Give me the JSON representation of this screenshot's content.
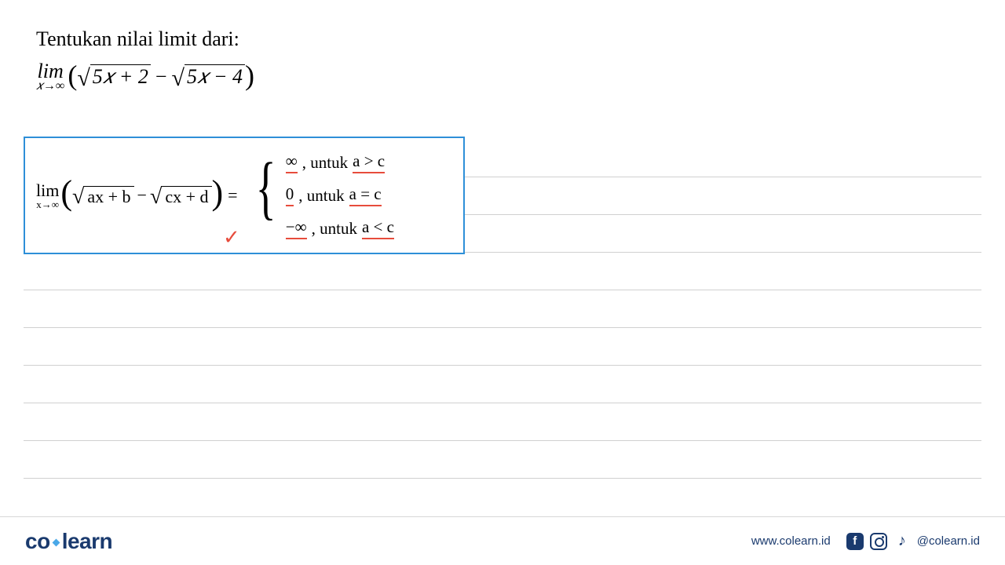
{
  "question": {
    "title": "Tentukan nilai limit dari:",
    "lim_label": "lim",
    "lim_subscript": "𝑥→∞",
    "radicand1": "5𝑥 + 2",
    "minus": "−",
    "radicand2": "5𝑥 − 4"
  },
  "formula": {
    "lim_label": "lim",
    "lim_subscript": "x→∞",
    "radicand_a": "ax + b",
    "minus": "−",
    "radicand_b": "cx + d",
    "equals": "=",
    "cases": [
      {
        "value": "∞",
        "untuk": ", untuk ",
        "cond": "a > c"
      },
      {
        "value": "0",
        "untuk": ", untuk ",
        "cond": "a = c"
      },
      {
        "value": "−∞",
        "untuk": ", untuk ",
        "cond": "a < c"
      }
    ],
    "checkmark": "✓"
  },
  "footer": {
    "logo_co": "co",
    "logo_learn": "learn",
    "website": "www.colearn.id",
    "handle": "@colearn.id"
  },
  "style": {
    "box_border_color": "#2e8fd8",
    "underline_color": "#e74c3c",
    "line_color": "#d0d0d0",
    "brand_color": "#1a3a6e",
    "accent_color": "#4aa8e8",
    "title_fontsize": 26,
    "formula_fontsize": 22,
    "case_fontsize": 21
  }
}
